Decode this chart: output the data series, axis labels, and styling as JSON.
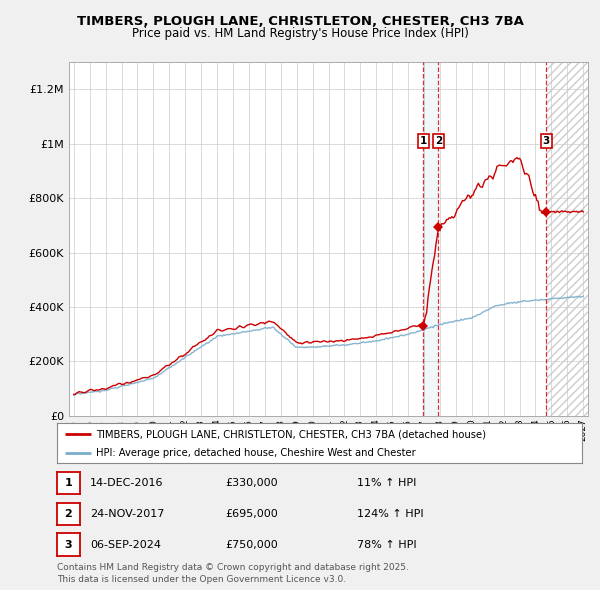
{
  "title": "TIMBERS, PLOUGH LANE, CHRISTLETON, CHESTER, CH3 7BA",
  "subtitle": "Price paid vs. HM Land Registry's House Price Index (HPI)",
  "ylabel_ticks": [
    "£0",
    "£200K",
    "£400K",
    "£600K",
    "£800K",
    "£1M",
    "£1.2M"
  ],
  "ytick_values": [
    0,
    200000,
    400000,
    600000,
    800000,
    1000000,
    1200000
  ],
  "ylim": [
    0,
    1300000
  ],
  "xlim_start": 1994.7,
  "xlim_end": 2027.3,
  "sales": [
    {
      "num": 1,
      "date": "14-DEC-2016",
      "price": 330000,
      "year": 2016.96,
      "hpi_pct": "11% ↑ HPI"
    },
    {
      "num": 2,
      "date": "24-NOV-2017",
      "price": 695000,
      "year": 2017.9,
      "hpi_pct": "124% ↑ HPI"
    },
    {
      "num": 3,
      "date": "06-SEP-2024",
      "price": 750000,
      "year": 2024.68,
      "hpi_pct": "78% ↑ HPI"
    }
  ],
  "property_line_color": "#cc0000",
  "hpi_line_color": "#7aadcc",
  "legend_label_property": "TIMBERS, PLOUGH LANE, CHRISTLETON, CHESTER, CH3 7BA (detached house)",
  "legend_label_hpi": "HPI: Average price, detached house, Cheshire West and Chester",
  "footer": "Contains HM Land Registry data © Crown copyright and database right 2025.\nThis data is licensed under the Open Government Licence v3.0.",
  "bg_color": "#f0f0f0",
  "plot_bg_color": "#ffffff"
}
